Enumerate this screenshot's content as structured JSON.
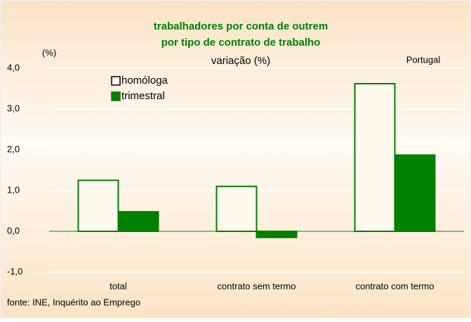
{
  "chart_data": {
    "type": "bar",
    "title": [
      "trabalhadores por conta de outrem",
      "por tipo de  contrato de trabalho"
    ],
    "subtitle": "variação (%)",
    "y_label": "(%)",
    "annotation": "Portugal",
    "source": "fonte: INE, Inquérito ao Emprego",
    "categories": [
      "total",
      "contrato sem termo",
      "contrato com termo"
    ],
    "series": [
      {
        "name": "homóloga",
        "color": "#008000",
        "fill": "#fff9f0",
        "values": [
          1.25,
          1.1,
          3.62
        ]
      },
      {
        "name": "trimestral",
        "color": "#008000",
        "fill": "#008000",
        "values": [
          0.48,
          -0.15,
          1.87
        ]
      }
    ],
    "ylim": [
      -1,
      4
    ],
    "yticks": [
      {
        "value": -1,
        "label": "-1,0"
      },
      {
        "value": 0,
        "label": "0,0"
      },
      {
        "value": 1,
        "label": "1,0"
      },
      {
        "value": 2,
        "label": "2,0"
      },
      {
        "value": 3,
        "label": "3,0"
      },
      {
        "value": 4,
        "label": "4,0"
      }
    ],
    "grid": true
  }
}
